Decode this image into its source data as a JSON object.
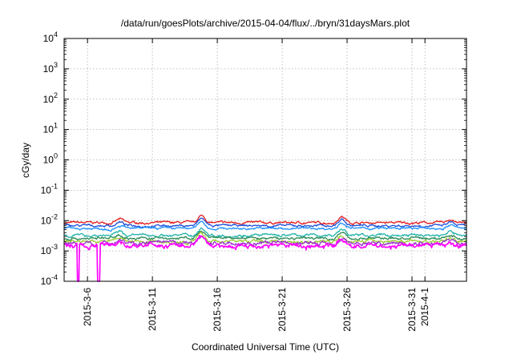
{
  "chart_data": {
    "type": "line",
    "title": "/data/run/goesPlots/archive/2015-04-04/flux/../bryn/31daysMars.plot",
    "xlabel": "Coordinated Universal Time (UTC)",
    "ylabel": "cGy/day",
    "yscale": "log",
    "ylim": [
      0.0001,
      10000
    ],
    "xlim_days": [
      0,
      31
    ],
    "y_ticks": [
      {
        "base": "10",
        "exp": "-4"
      },
      {
        "base": "10",
        "exp": "-3"
      },
      {
        "base": "10",
        "exp": "-2"
      },
      {
        "base": "10",
        "exp": "-1"
      },
      {
        "base": "10",
        "exp": "0"
      },
      {
        "base": "10",
        "exp": "1"
      },
      {
        "base": "10",
        "exp": "2"
      },
      {
        "base": "10",
        "exp": "3"
      },
      {
        "base": "10",
        "exp": "4"
      }
    ],
    "x_ticks": [
      {
        "label": "2015-3-6",
        "day": 1.8
      },
      {
        "label": "2015-3-11",
        "day": 6.8
      },
      {
        "label": "2015-3-16",
        "day": 11.8
      },
      {
        "label": "2015-3-21",
        "day": 16.8
      },
      {
        "label": "2015-3-26",
        "day": 21.8
      },
      {
        "label": "2015-3-31",
        "day": 26.8
      },
      {
        "label": "2015-4-1",
        "day": 27.8
      }
    ],
    "grid": true,
    "series": [
      {
        "color": "#e41a1c",
        "level": 0.0085,
        "noise": 0.1
      },
      {
        "color": "#1f4fd8",
        "level": 0.0068,
        "noise": 0.1
      },
      {
        "color": "#1e90ff",
        "level": 0.0055,
        "noise": 0.1
      },
      {
        "color": "#20b2aa",
        "level": 0.0033,
        "noise": 0.12
      },
      {
        "color": "#2e8b57",
        "level": 0.0026,
        "noise": 0.12
      },
      {
        "color": "#9acd32",
        "level": 0.0021,
        "noise": 0.14
      },
      {
        "color": "#9932cc",
        "level": 0.0018,
        "noise": 0.16
      },
      {
        "color": "#ff00ff",
        "level": 0.0015,
        "noise": 0.2
      }
    ]
  }
}
